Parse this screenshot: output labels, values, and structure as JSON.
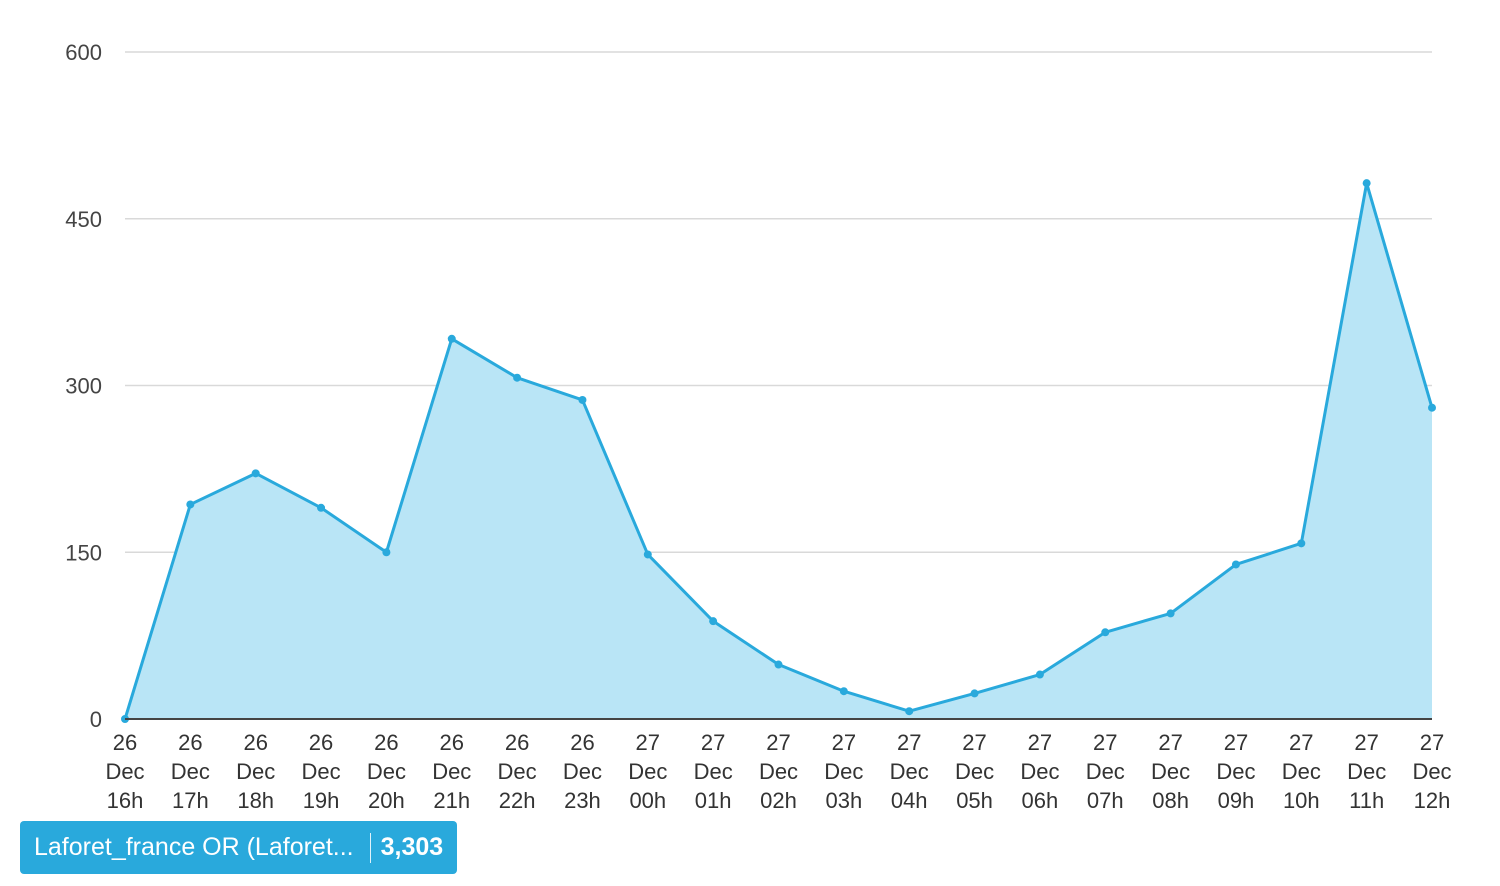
{
  "colors": {
    "line": "#29a9dc",
    "fill": "#b9e5f6",
    "grid": "#d9d9d9",
    "axis": "#444444",
    "legend_bg": "#29a9dc"
  },
  "chart_data": {
    "type": "area",
    "title": "",
    "xlabel": "",
    "ylabel": "",
    "ylim": [
      0,
      600
    ],
    "yticks": [
      0,
      150,
      300,
      450,
      600
    ],
    "grid": true,
    "legend_position": "bottom-left",
    "categories": [
      [
        "26",
        "Dec",
        "16h"
      ],
      [
        "26",
        "Dec",
        "17h"
      ],
      [
        "26",
        "Dec",
        "18h"
      ],
      [
        "26",
        "Dec",
        "19h"
      ],
      [
        "26",
        "Dec",
        "20h"
      ],
      [
        "26",
        "Dec",
        "21h"
      ],
      [
        "26",
        "Dec",
        "22h"
      ],
      [
        "26",
        "Dec",
        "23h"
      ],
      [
        "27",
        "Dec",
        "00h"
      ],
      [
        "27",
        "Dec",
        "01h"
      ],
      [
        "27",
        "Dec",
        "02h"
      ],
      [
        "27",
        "Dec",
        "03h"
      ],
      [
        "27",
        "Dec",
        "04h"
      ],
      [
        "27",
        "Dec",
        "05h"
      ],
      [
        "27",
        "Dec",
        "06h"
      ],
      [
        "27",
        "Dec",
        "07h"
      ],
      [
        "27",
        "Dec",
        "08h"
      ],
      [
        "27",
        "Dec",
        "09h"
      ],
      [
        "27",
        "Dec",
        "10h"
      ],
      [
        "27",
        "Dec",
        "11h"
      ],
      [
        "27",
        "Dec",
        "12h"
      ]
    ],
    "series": [
      {
        "name": "Laforet_france OR (Laforet...",
        "values": [
          0,
          193,
          221,
          190,
          150,
          342,
          307,
          287,
          148,
          88,
          49,
          25,
          7,
          23,
          40,
          78,
          95,
          139,
          158,
          482,
          280
        ]
      }
    ]
  },
  "legend": {
    "label": "Laforet_france OR (Laforet...",
    "total": "3,303"
  }
}
